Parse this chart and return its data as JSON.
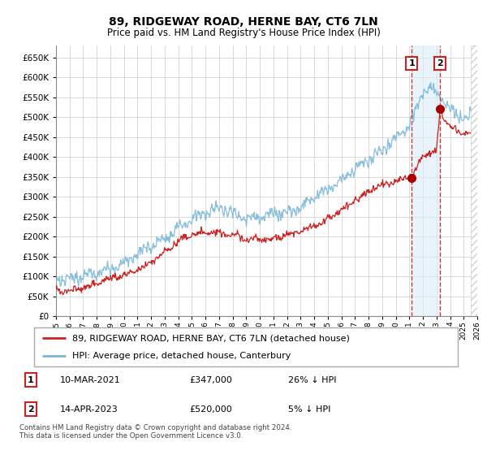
{
  "title": "89, RIDGEWAY ROAD, HERNE BAY, CT6 7LN",
  "subtitle": "Price paid vs. HM Land Registry's House Price Index (HPI)",
  "legend_line1": "89, RIDGEWAY ROAD, HERNE BAY, CT6 7LN (detached house)",
  "legend_line2": "HPI: Average price, detached house, Canterbury",
  "sale1_label": "1",
  "sale1_date": "10-MAR-2021",
  "sale1_price": "£347,000",
  "sale1_hpi": "26% ↓ HPI",
  "sale2_label": "2",
  "sale2_date": "14-APR-2023",
  "sale2_price": "£520,000",
  "sale2_hpi": "5% ↓ HPI",
  "footer": "Contains HM Land Registry data © Crown copyright and database right 2024.\nThis data is licensed under the Open Government Licence v3.0.",
  "hpi_color": "#7ab8d9",
  "price_color": "#cc2222",
  "sale_marker_color": "#aa0000",
  "vline_color": "#cc2222",
  "shade_color": "#daeef8",
  "ylim": [
    0,
    680000
  ],
  "yticks": [
    0,
    50000,
    100000,
    150000,
    200000,
    250000,
    300000,
    350000,
    400000,
    450000,
    500000,
    550000,
    600000,
    650000
  ],
  "sale1_x": 2021.19,
  "sale1_y": 347000,
  "sale2_x": 2023.28,
  "sale2_y": 520000,
  "xmin": 1995,
  "xmax": 2026,
  "hpi_anchors_x": [
    1995,
    1996,
    1997,
    1998,
    1999,
    2000,
    2001,
    2002,
    2003,
    2004,
    2005,
    2006,
    2007,
    2008,
    2009,
    2010,
    2011,
    2012,
    2013,
    2014,
    2015,
    2016,
    2017,
    2018,
    2019,
    2020,
    2021,
    2021.5,
    2022,
    2022.5,
    2023,
    2023.5,
    2024,
    2025
  ],
  "hpi_anchors_y": [
    88000,
    92000,
    100000,
    110000,
    122000,
    140000,
    160000,
    180000,
    200000,
    225000,
    248000,
    265000,
    275000,
    260000,
    245000,
    248000,
    255000,
    258000,
    268000,
    290000,
    310000,
    335000,
    360000,
    385000,
    410000,
    435000,
    470000,
    510000,
    555000,
    565000,
    555000,
    540000,
    510000,
    490000
  ],
  "price_anchors_x": [
    1995,
    1996,
    1997,
    1998,
    1999,
    2000,
    2001,
    2002,
    2003,
    2004,
    2005,
    2006,
    2007,
    2008,
    2009,
    2010,
    2011,
    2012,
    2013,
    2014,
    2015,
    2016,
    2017,
    2018,
    2019,
    2020,
    2021.19,
    2022,
    2023.0,
    2023.28,
    2023.5,
    2024,
    2025
  ],
  "price_anchors_y": [
    62000,
    65000,
    72000,
    80000,
    90000,
    100000,
    112000,
    130000,
    155000,
    175000,
    190000,
    198000,
    200000,
    195000,
    185000,
    185000,
    188000,
    190000,
    198000,
    215000,
    235000,
    258000,
    282000,
    305000,
    320000,
    335000,
    347000,
    395000,
    405000,
    520000,
    490000,
    465000,
    450000
  ]
}
